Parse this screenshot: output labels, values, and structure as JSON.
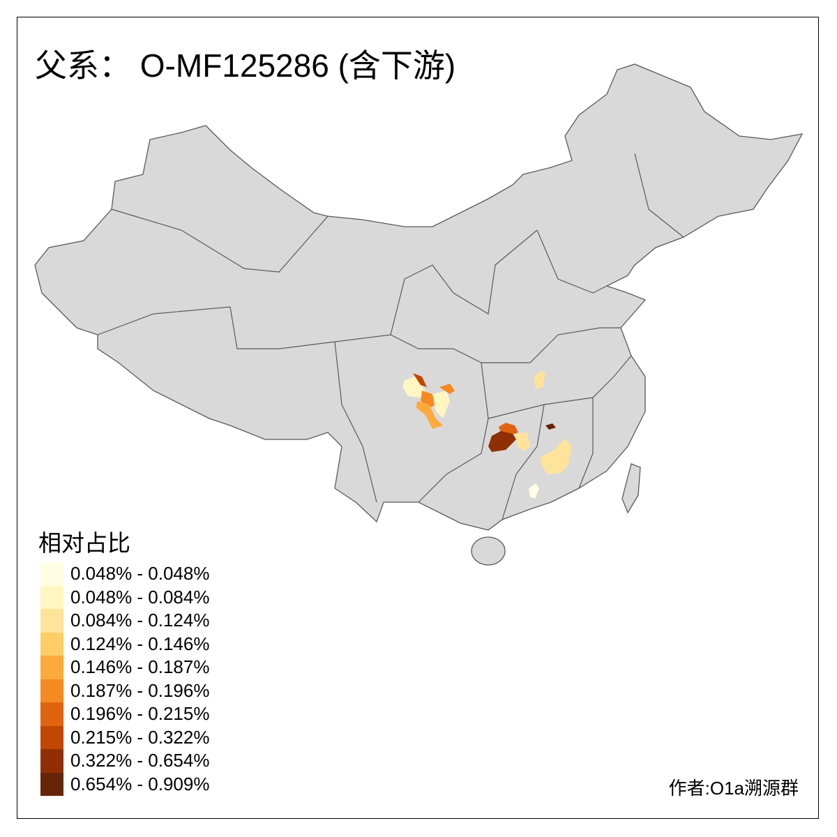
{
  "title": "父系： O-MF125286 (含下游)",
  "legend": {
    "title": "相对占比",
    "items": [
      {
        "label": "0.048% - 0.048%",
        "color": "#FFFDE3"
      },
      {
        "label": "0.048% - 0.084%",
        "color": "#FFF6C2"
      },
      {
        "label": "0.084% - 0.124%",
        "color": "#FEE39B"
      },
      {
        "label": "0.124% - 0.146%",
        "color": "#FECD68"
      },
      {
        "label": "0.146% - 0.187%",
        "color": "#FDAA3C"
      },
      {
        "label": "0.187% - 0.196%",
        "color": "#F58A23"
      },
      {
        "label": "0.196% - 0.215%",
        "color": "#E0640F"
      },
      {
        "label": "0.215% - 0.322%",
        "color": "#C04704"
      },
      {
        "label": "0.322% - 0.654%",
        "color": "#902F04"
      },
      {
        "label": "0.654% - 0.909%",
        "color": "#662506"
      }
    ]
  },
  "base_color": "#D9D9D9",
  "border_color": "#595959",
  "author": "作者:O1a溯源群"
}
